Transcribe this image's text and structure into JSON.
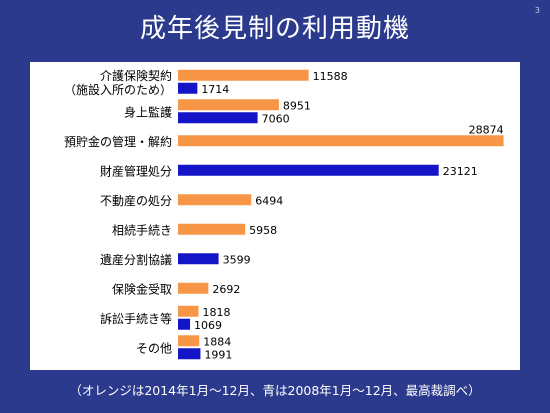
{
  "slide": {
    "title": "成年後見制の利用動機",
    "page_number": "3",
    "footnote": "（オレンジは2014年1月～12月、青は2008年1月～12月、最高裁調べ）"
  },
  "chart_data": {
    "type": "bar",
    "orientation": "horizontal",
    "title": "",
    "xlabel": "",
    "ylabel": "",
    "xlim": [
      0,
      29000
    ],
    "grid": false,
    "legend": "none",
    "colors": {
      "orange": "#f79646",
      "blue": "#1515c8"
    },
    "categories": [
      [
        "介護保険契約",
        "（施設入所のため）"
      ],
      [
        "身上監護"
      ],
      [
        "預貯金の管理・解約"
      ],
      [
        "財産管理処分"
      ],
      [
        "不動産の処分"
      ],
      [
        "相続手続き"
      ],
      [
        "遺産分割協議"
      ],
      [
        "保険金受取"
      ],
      [
        "訴訟手続き等"
      ],
      [
        "その他"
      ]
    ],
    "series": [
      {
        "color": "orange",
        "values": [
          11588,
          8951,
          28874,
          null,
          6494,
          5958,
          null,
          2692,
          1818,
          1884
        ]
      },
      {
        "color": "blue",
        "values": [
          1714,
          7060,
          null,
          23121,
          null,
          null,
          3599,
          null,
          1069,
          1991
        ]
      }
    ]
  }
}
